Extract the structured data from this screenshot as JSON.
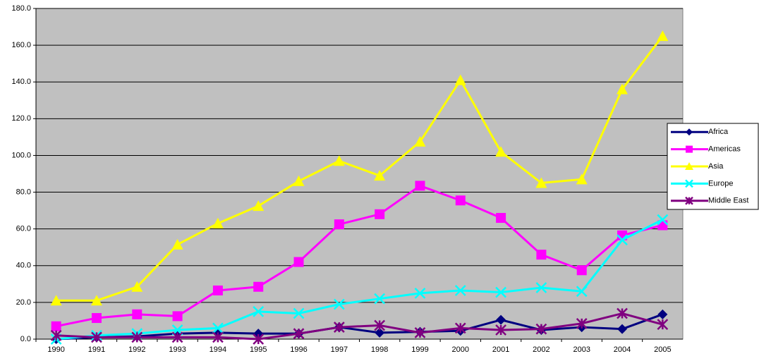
{
  "chart_data": {
    "type": "line",
    "categories": [
      "1990",
      "1991",
      "1992",
      "1993",
      "1994",
      "1995",
      "1996",
      "1997",
      "1998",
      "1999",
      "2000",
      "2001",
      "2002",
      "2003",
      "2004",
      "2005"
    ],
    "series": [
      {
        "name": "Africa",
        "color": "#000080",
        "marker": "diamond",
        "values": [
          0,
          1,
          1.5,
          3,
          3.5,
          3,
          3,
          6.5,
          3.5,
          4,
          4.5,
          10.5,
          5,
          6.5,
          5.5,
          13.5
        ]
      },
      {
        "name": "Americas",
        "color": "#FF00FF",
        "marker": "square",
        "values": [
          7,
          11.5,
          13.5,
          12.5,
          26.5,
          28.5,
          42,
          62.5,
          68,
          83.5,
          75.5,
          66,
          46,
          37.5,
          56.5,
          62
        ]
      },
      {
        "name": "Asia",
        "color": "#FFFF00",
        "marker": "triangle",
        "values": [
          21,
          21,
          28.5,
          51.5,
          63,
          72.5,
          86,
          97,
          89,
          107.5,
          141,
          102,
          85,
          87,
          136,
          165
        ]
      },
      {
        "name": "Europe",
        "color": "#00FFFF",
        "marker": "x",
        "values": [
          0,
          2,
          3,
          5,
          6,
          15,
          14,
          19,
          22,
          25,
          26.5,
          25.5,
          28,
          26,
          54,
          65
        ]
      },
      {
        "name": "Middle East",
        "color": "#800080",
        "marker": "star",
        "values": [
          2,
          1,
          1,
          1,
          1,
          0,
          3,
          6.5,
          7.5,
          3.5,
          6,
          5,
          5.5,
          8.5,
          14,
          8
        ]
      }
    ],
    "ylim": [
      0,
      180
    ],
    "yticks": [
      {
        "value": 0,
        "label": "0.0"
      },
      {
        "value": 20,
        "label": "20.0"
      },
      {
        "value": 40,
        "label": "40.0"
      },
      {
        "value": 60,
        "label": "60.0"
      },
      {
        "value": 80,
        "label": "80.0"
      },
      {
        "value": 100,
        "label": "100.0"
      },
      {
        "value": 120,
        "label": "120.0"
      },
      {
        "value": 140,
        "label": "140.0"
      },
      {
        "value": 160,
        "label": "160.0"
      },
      {
        "value": 180,
        "label": "180.0"
      }
    ],
    "grid": true,
    "plot_background": "#C0C0C0",
    "legend": "right"
  }
}
